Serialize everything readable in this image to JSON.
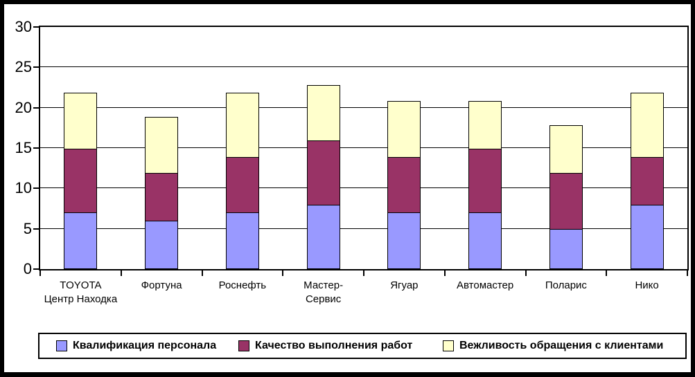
{
  "chart_data": {
    "type": "bar",
    "stacked": true,
    "title": "",
    "xlabel": "",
    "ylabel": "",
    "categories": [
      "TOYOTA Центр Находка",
      "Фортуна",
      "Роснефть",
      "Мастер-Сервис",
      "Ягуар",
      "Автомастер",
      "Поларис",
      "Нико"
    ],
    "category_label_lines": [
      [
        "TOYOTA",
        "Центр Находка"
      ],
      [
        "Фортуна"
      ],
      [
        "Роснефть"
      ],
      [
        "Мастер-",
        "Сервис"
      ],
      [
        "Ягуар"
      ],
      [
        "Автомастер"
      ],
      [
        "Поларис"
      ],
      [
        "Нико"
      ]
    ],
    "series": [
      {
        "name": "Квалификация персонала",
        "color": "#9999FF",
        "values": [
          7,
          6,
          7,
          8,
          7,
          7,
          5,
          8
        ]
      },
      {
        "name": "Качество выполнения работ",
        "color": "#993366",
        "values": [
          8,
          6,
          7,
          8,
          7,
          8,
          7,
          6
        ]
      },
      {
        "name": "Вежливость обращения с клиентами",
        "color": "#FFFFCC",
        "values": [
          7,
          7,
          8,
          7,
          7,
          6,
          6,
          8
        ]
      }
    ],
    "totals": [
      22,
      19,
      22,
      23,
      21,
      21,
      18,
      22
    ],
    "ylim": [
      0,
      30
    ],
    "yticks": [
      0,
      5,
      10,
      15,
      20,
      25,
      30
    ],
    "grid": true,
    "legend_position": "bottom",
    "plot_background": "#FFFFFF",
    "frame_color": "#000000"
  }
}
